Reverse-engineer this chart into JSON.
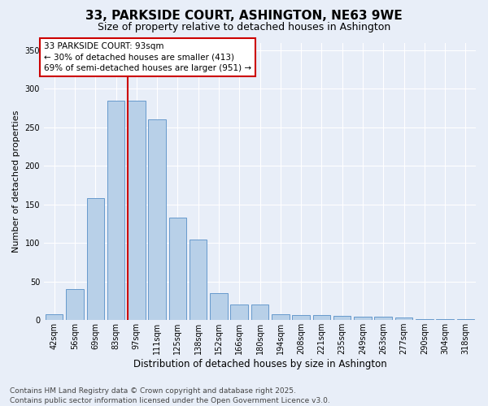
{
  "title1": "33, PARKSIDE COURT, ASHINGTON, NE63 9WE",
  "title2": "Size of property relative to detached houses in Ashington",
  "xlabel": "Distribution of detached houses by size in Ashington",
  "ylabel": "Number of detached properties",
  "categories": [
    "42sqm",
    "56sqm",
    "69sqm",
    "83sqm",
    "97sqm",
    "111sqm",
    "125sqm",
    "138sqm",
    "152sqm",
    "166sqm",
    "180sqm",
    "194sqm",
    "208sqm",
    "221sqm",
    "235sqm",
    "249sqm",
    "263sqm",
    "277sqm",
    "290sqm",
    "304sqm",
    "318sqm"
  ],
  "values": [
    8,
    40,
    158,
    285,
    285,
    260,
    133,
    104,
    35,
    20,
    20,
    8,
    6,
    7,
    5,
    4,
    4,
    3,
    1,
    1,
    1
  ],
  "bar_color": "#b8d0e8",
  "bar_edge_color": "#6699cc",
  "vline_color": "#cc0000",
  "vline_x_index": 4,
  "annotation_title": "33 PARKSIDE COURT: 93sqm",
  "annotation_line1": "← 30% of detached houses are smaller (413)",
  "annotation_line2": "69% of semi-detached houses are larger (951) →",
  "annotation_box_color": "#ffffff",
  "annotation_box_edge": "#cc0000",
  "ylim": [
    0,
    360
  ],
  "yticks": [
    0,
    50,
    100,
    150,
    200,
    250,
    300,
    350
  ],
  "fig_bg_color": "#e8eef8",
  "plot_bg_color": "#e8eef8",
  "footer1": "Contains HM Land Registry data © Crown copyright and database right 2025.",
  "footer2": "Contains public sector information licensed under the Open Government Licence v3.0.",
  "title1_fontsize": 11,
  "title2_fontsize": 9,
  "xlabel_fontsize": 8.5,
  "ylabel_fontsize": 8,
  "tick_fontsize": 7,
  "footer_fontsize": 6.5,
  "annotation_fontsize": 7.5
}
